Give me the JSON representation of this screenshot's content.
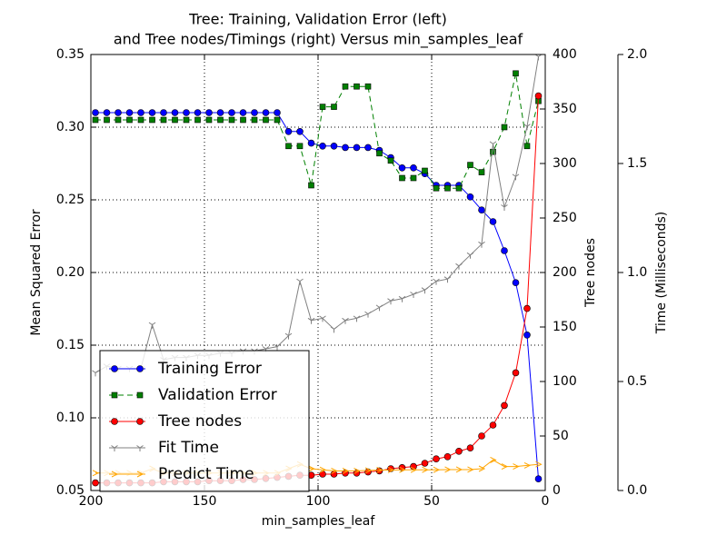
{
  "chart_data": {
    "type": "line",
    "title": "Tree: Training, Validation Error (left)",
    "subtitle": "and Tree nodes/Timings (right) Versus min_samples_leaf",
    "xlabel": "min_samples_leaf",
    "ylabel": "Mean Squared Error",
    "ylabel_color": "#008000",
    "y2label": "Tree nodes",
    "y2label_color": "#ff0000",
    "y3label": "Time (Milliseconds)",
    "y3label_color": "#ffa500",
    "xlim": [
      200,
      0
    ],
    "xticks": [
      200,
      150,
      100,
      50,
      0
    ],
    "ylim": [
      0.05,
      0.35
    ],
    "yticks": [
      0.05,
      {
        "value": 0.1,
        "label": "0.10"
      },
      0.15,
      {
        "value": 0.2,
        "label": "0.20"
      },
      0.25,
      {
        "value": 0.3,
        "label": "0.30"
      },
      0.35
    ],
    "y2lim": [
      0,
      400
    ],
    "y2ticks": [
      0,
      50,
      100,
      150,
      200,
      250,
      300,
      350,
      400
    ],
    "y3lim": [
      0,
      2
    ],
    "y3ticks": [
      {
        "value": 0,
        "label": "0.0"
      },
      0.5,
      {
        "value": 1,
        "label": "1.0"
      },
      1.5,
      {
        "value": 2,
        "label": "2.0"
      }
    ],
    "grid": true,
    "legend": "lower left",
    "x": [
      198,
      193,
      188,
      183,
      178,
      173,
      168,
      163,
      158,
      153,
      148,
      143,
      138,
      133,
      128,
      123,
      118,
      113,
      108,
      103,
      98,
      93,
      88,
      83,
      78,
      73,
      68,
      63,
      58,
      53,
      48,
      43,
      38,
      33,
      28,
      23,
      18,
      13,
      8,
      3
    ],
    "series": [
      {
        "name": "Training Error",
        "color": "#0000ff",
        "marker": "circle",
        "linestyle": "solid",
        "values": [
          0.31,
          0.31,
          0.31,
          0.31,
          0.31,
          0.31,
          0.31,
          0.31,
          0.31,
          0.31,
          0.31,
          0.31,
          0.31,
          0.31,
          0.31,
          0.31,
          0.31,
          0.297,
          0.297,
          0.289,
          0.287,
          0.287,
          0.286,
          0.286,
          0.286,
          0.284,
          0.279,
          0.272,
          0.272,
          0.268,
          0.26,
          0.26,
          0.26,
          0.252,
          0.243,
          0.235,
          0.215,
          0.193,
          0.157,
          0.058
        ]
      },
      {
        "name": "Validation Error",
        "color": "#008000",
        "marker": "square",
        "linestyle": "dashed",
        "values": [
          0.305,
          0.305,
          0.305,
          0.305,
          0.305,
          0.305,
          0.305,
          0.305,
          0.305,
          0.305,
          0.305,
          0.305,
          0.305,
          0.305,
          0.305,
          0.305,
          0.305,
          0.287,
          0.287,
          0.26,
          0.314,
          0.314,
          0.328,
          0.328,
          0.328,
          0.282,
          0.277,
          0.265,
          0.265,
          0.27,
          0.258,
          0.258,
          0.258,
          0.274,
          0.269,
          0.283,
          0.3,
          0.337,
          0.287,
          0.318
        ]
      },
      {
        "name": "Tree nodes",
        "color": "#ff0000",
        "marker": "circle",
        "linestyle": "solid",
        "axis": "y2",
        "values": [
          7,
          7,
          7,
          7,
          7,
          7,
          8,
          8,
          8,
          8,
          9,
          9,
          9,
          10,
          10,
          11,
          12,
          13,
          14,
          14,
          15,
          15,
          16,
          16,
          17,
          18,
          20,
          21,
          22,
          25,
          29,
          31,
          36,
          39,
          50,
          60,
          78,
          108,
          167,
          362
        ]
      },
      {
        "name": "Fit Time",
        "color": "#808080",
        "marker": "tri",
        "linestyle": "solid",
        "axis": "y3",
        "values": [
          0.54,
          0.57,
          0.56,
          0.56,
          0.56,
          0.76,
          0.6,
          0.61,
          0.61,
          0.62,
          0.62,
          0.63,
          0.63,
          0.64,
          0.64,
          0.65,
          0.66,
          0.71,
          0.96,
          0.78,
          0.79,
          0.74,
          0.78,
          0.79,
          0.81,
          0.84,
          0.87,
          0.88,
          0.9,
          0.92,
          0.96,
          0.97,
          1.03,
          1.08,
          1.13,
          1.59,
          1.3,
          1.44,
          1.67,
          1.99
        ]
      },
      {
        "name": "Predict Time",
        "color": "#ffa500",
        "marker": "arrow",
        "linestyle": "solid",
        "axis": "y3",
        "values": [
          0.08,
          0.08,
          0.08,
          0.08,
          0.08,
          0.1,
          0.08,
          0.08,
          0.08,
          0.08,
          0.08,
          0.08,
          0.08,
          0.08,
          0.08,
          0.08,
          0.08,
          0.1,
          0.12,
          0.1,
          0.095,
          0.09,
          0.09,
          0.09,
          0.092,
          0.094,
          0.094,
          0.095,
          0.095,
          0.095,
          0.095,
          0.096,
          0.096,
          0.096,
          0.1,
          0.14,
          0.11,
          0.11,
          0.115,
          0.12
        ]
      }
    ]
  }
}
